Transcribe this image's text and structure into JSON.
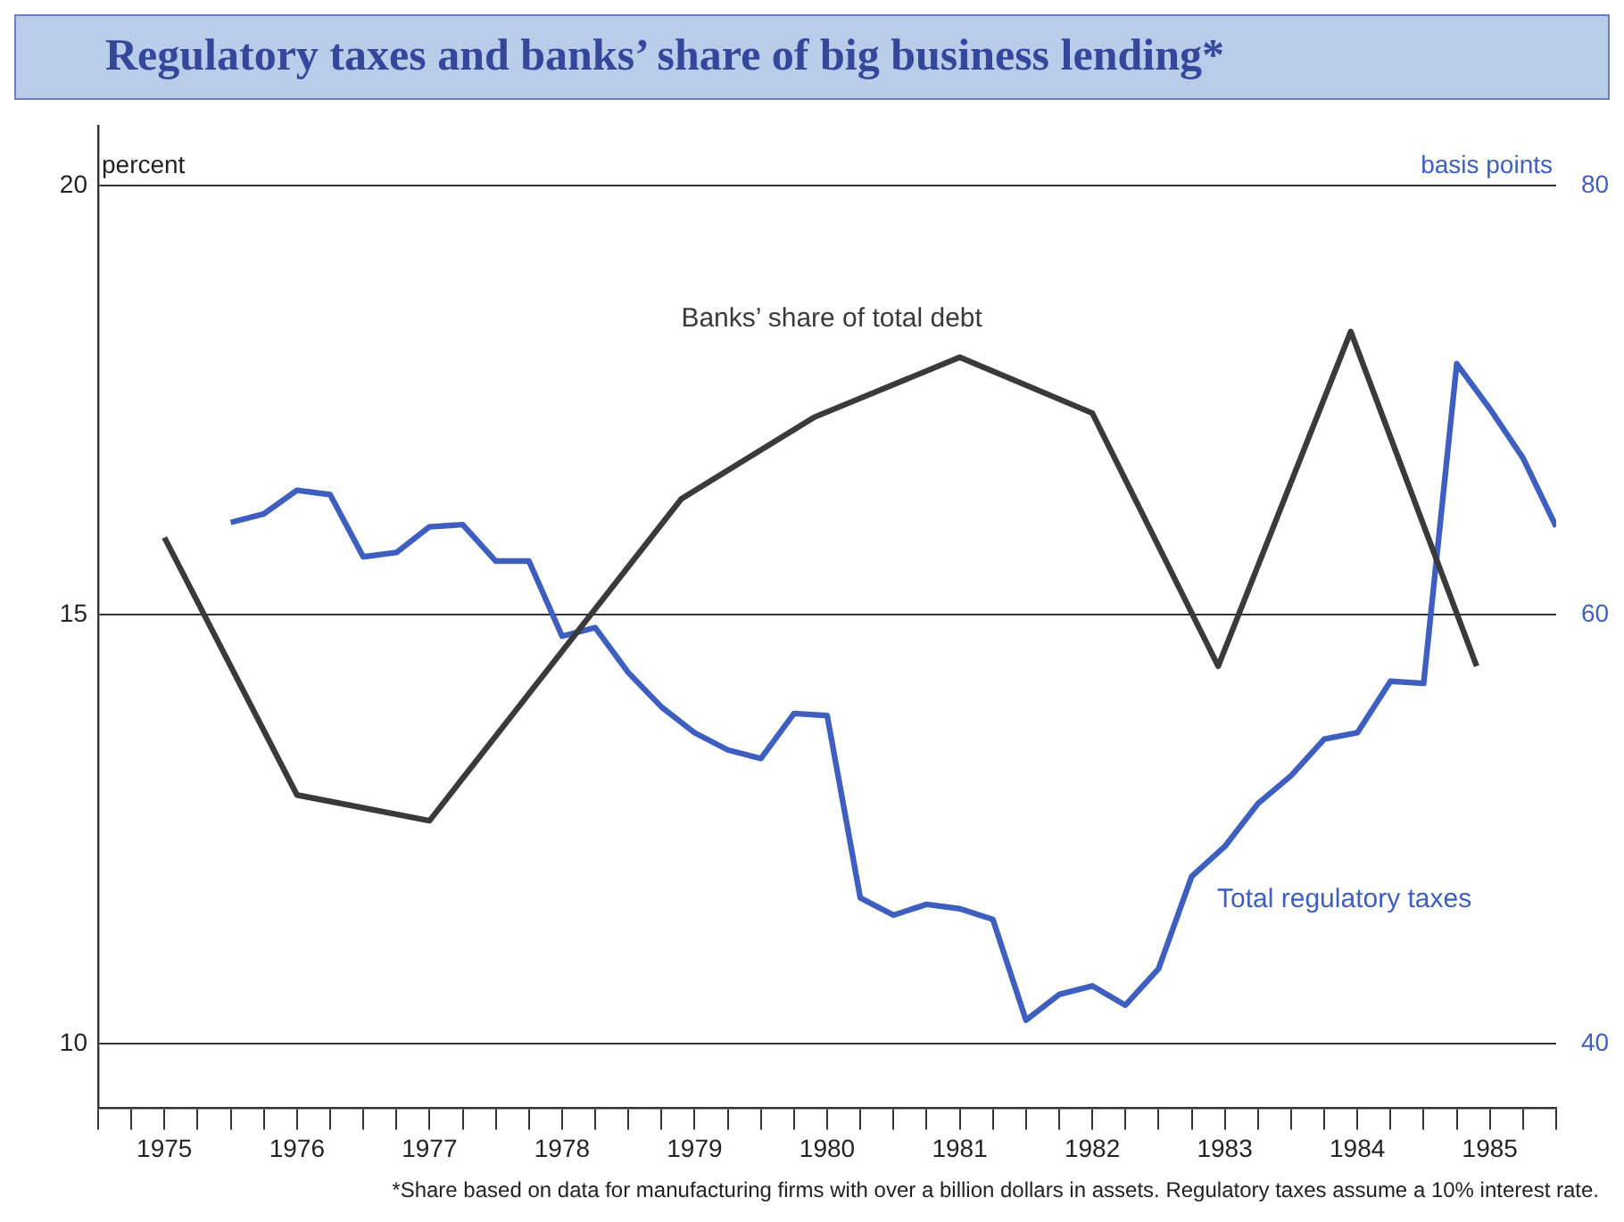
{
  "chart_data": {
    "type": "line",
    "title": "Regulatory taxes and banks’ share of big business lending*",
    "ylabel": "percent",
    "y2label": "basis points",
    "annotations": [
      "*Share based on data for manufacturing firms with over a billion dollars in assets. Regulatory taxes assume a 10% interest rate."
    ],
    "xlim": [
      1975,
      1986
    ],
    "xticks": [
      {
        "value": 1975,
        "label": null
      },
      {
        "value": 1975.25,
        "label": null
      },
      {
        "value": 1975.5,
        "label": "1975"
      },
      {
        "value": 1975.75,
        "label": null
      },
      {
        "value": 1976,
        "label": null
      },
      {
        "value": 1976.25,
        "label": null
      },
      {
        "value": 1976.5,
        "label": "1976"
      },
      {
        "value": 1976.75,
        "label": null
      },
      {
        "value": 1977,
        "label": null
      },
      {
        "value": 1977.25,
        "label": null
      },
      {
        "value": 1977.5,
        "label": "1977"
      },
      {
        "value": 1977.75,
        "label": null
      },
      {
        "value": 1978,
        "label": null
      },
      {
        "value": 1978.25,
        "label": null
      },
      {
        "value": 1978.5,
        "label": "1978"
      },
      {
        "value": 1978.75,
        "label": null
      },
      {
        "value": 1979,
        "label": null
      },
      {
        "value": 1979.25,
        "label": null
      },
      {
        "value": 1979.5,
        "label": "1979"
      },
      {
        "value": 1979.75,
        "label": null
      },
      {
        "value": 1980,
        "label": null
      },
      {
        "value": 1980.25,
        "label": null
      },
      {
        "value": 1980.5,
        "label": "1980"
      },
      {
        "value": 1980.75,
        "label": null
      },
      {
        "value": 1981,
        "label": null
      },
      {
        "value": 1981.25,
        "label": null
      },
      {
        "value": 1981.5,
        "label": "1981"
      },
      {
        "value": 1981.75,
        "label": null
      },
      {
        "value": 1982,
        "label": null
      },
      {
        "value": 1982.25,
        "label": null
      },
      {
        "value": 1982.5,
        "label": "1982"
      },
      {
        "value": 1982.75,
        "label": null
      },
      {
        "value": 1983,
        "label": null
      },
      {
        "value": 1983.25,
        "label": null
      },
      {
        "value": 1983.5,
        "label": "1983"
      },
      {
        "value": 1983.75,
        "label": null
      },
      {
        "value": 1984,
        "label": null
      },
      {
        "value": 1984.25,
        "label": null
      },
      {
        "value": 1984.5,
        "label": "1984"
      },
      {
        "value": 1984.75,
        "label": null
      },
      {
        "value": 1985,
        "label": null
      },
      {
        "value": 1985.25,
        "label": null
      },
      {
        "value": 1985.5,
        "label": "1985"
      },
      {
        "value": 1985.75,
        "label": null
      },
      {
        "value": 1986,
        "label": null
      }
    ],
    "ylim": [
      9.25,
      20.7
    ],
    "yticks": [
      10,
      15,
      20
    ],
    "y2lim": [
      37,
      82.8
    ],
    "y2ticks": [
      40,
      60,
      80
    ],
    "grid": "y",
    "legend": false,
    "series": [
      {
        "name": "Banks’ share of total debt",
        "color": "#3a3a3a",
        "x": [
          1975.5,
          1976.5,
          1977.5,
          1979.4,
          1980.4,
          1981.5,
          1982.5,
          1983.45,
          1984.45,
          1985.4
        ],
        "values": [
          15.9,
          12.9,
          12.6,
          16.35,
          17.3,
          18.0,
          17.35,
          14.4,
          18.3,
          14.4
        ]
      },
      {
        "name": "Total regulatory taxes",
        "color": "#3f5fc0",
        "axis": "y2",
        "x": [
          1976,
          1976.25,
          1976.5,
          1976.75,
          1977,
          1977.25,
          1977.5,
          1977.75,
          1978,
          1978.25,
          1978.5,
          1978.75,
          1979,
          1979.25,
          1979.5,
          1979.75,
          1980,
          1980.25,
          1980.5,
          1980.75,
          1981,
          1981.25,
          1981.5,
          1981.75,
          1982,
          1982.25,
          1982.5,
          1982.75,
          1983,
          1983.25,
          1983.5,
          1983.75,
          1984,
          1984.25,
          1984.5,
          1984.75,
          1985,
          1985.25,
          1985.5,
          1985.75,
          1986
        ],
        "values": [
          64.3,
          64.7,
          65.8,
          65.6,
          62.7,
          62.9,
          64.1,
          64.2,
          62.5,
          62.5,
          59.0,
          59.4,
          57.3,
          55.7,
          54.5,
          53.7,
          53.3,
          55.4,
          55.3,
          46.8,
          46.0,
          46.5,
          46.3,
          45.8,
          41.1,
          42.3,
          42.7,
          41.8,
          43.5,
          47.8,
          49.2,
          51.2,
          52.5,
          54.2,
          54.5,
          56.9,
          56.8,
          71.7,
          69.6,
          67.3,
          64.1
        ]
      }
    ]
  }
}
